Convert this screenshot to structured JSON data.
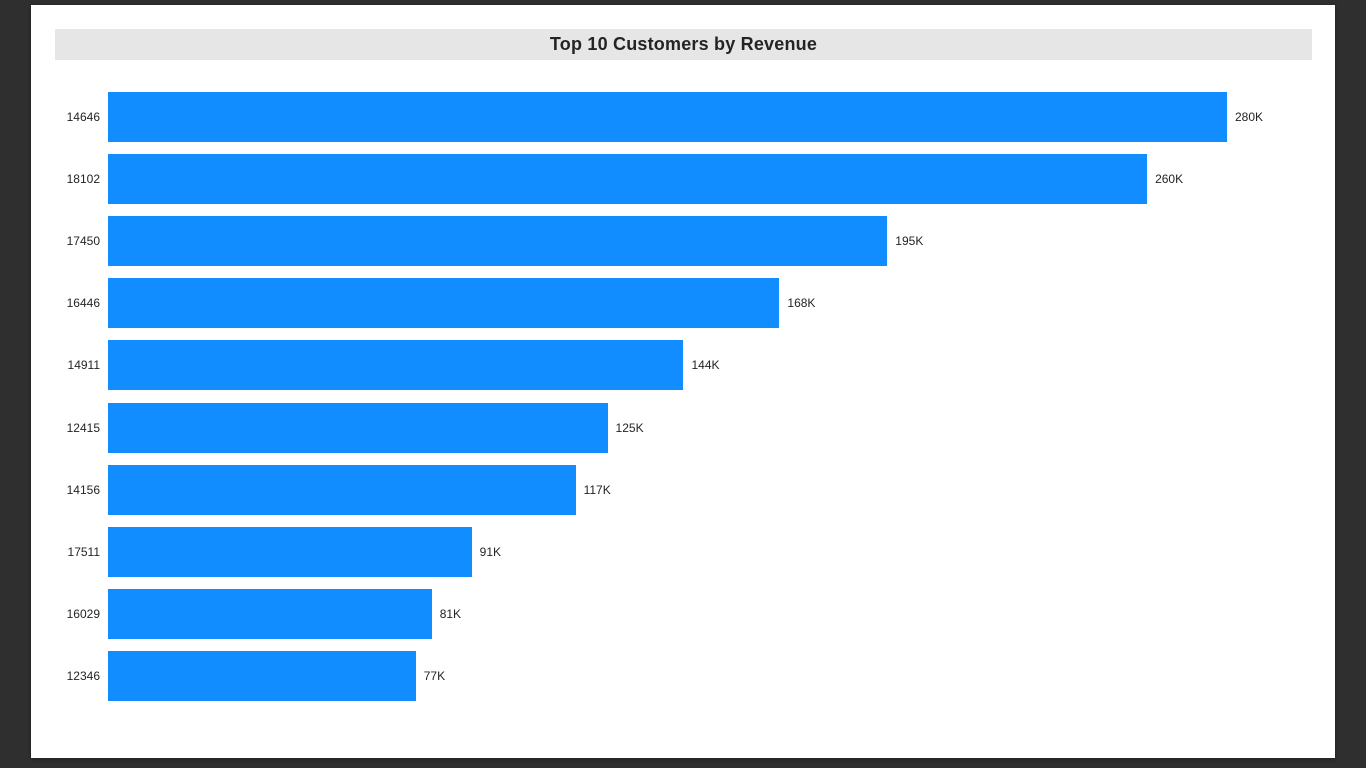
{
  "page": {
    "background_color": "#2F2F2F",
    "canvas_color": "#FFFFFF"
  },
  "chart_data": {
    "type": "bar",
    "orientation": "horizontal",
    "title": "Top 10 Customers by Revenue",
    "title_background": "#E6E6E6",
    "title_color": "#252423",
    "bar_color": "#118DFF",
    "label_color": "#252423",
    "categories": [
      "14646",
      "18102",
      "17450",
      "16446",
      "14911",
      "12415",
      "14156",
      "17511",
      "16029",
      "12346"
    ],
    "values": [
      280,
      260,
      195,
      168,
      144,
      125,
      117,
      91,
      81,
      77
    ],
    "value_labels": [
      "280K",
      "260K",
      "195K",
      "168K",
      "144K",
      "125K",
      "117K",
      "91K",
      "81K",
      "77K"
    ],
    "value_unit": "K",
    "xlabel": "",
    "ylabel": "",
    "xlim": [
      0,
      280
    ],
    "grid": false,
    "legend": "none",
    "data_labels": "outside-end",
    "sort": "descending"
  }
}
